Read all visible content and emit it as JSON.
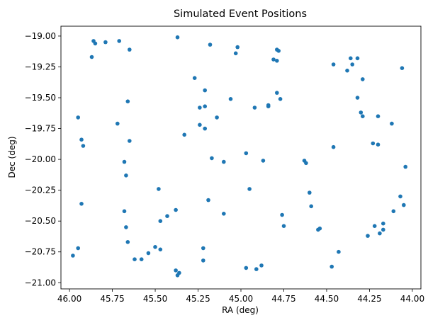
{
  "chart_data": {
    "type": "scatter",
    "title": "Simulated Event Positions",
    "xlabel": "RA (deg)",
    "ylabel": "Dec (deg)",
    "x_inverted": true,
    "xlim": [
      46.05,
      43.95
    ],
    "ylim": [
      -21.05,
      -18.92
    ],
    "xticks": [
      46.0,
      45.75,
      45.5,
      45.25,
      45.0,
      44.75,
      44.5,
      44.25,
      44.0
    ],
    "xtick_labels": [
      "46.00",
      "45.75",
      "45.50",
      "45.25",
      "45.00",
      "44.75",
      "44.50",
      "44.25",
      "44.00"
    ],
    "yticks": [
      -19.0,
      -19.25,
      -19.5,
      -19.75,
      -20.0,
      -20.25,
      -20.5,
      -20.75,
      -21.0
    ],
    "ytick_labels": [
      "−19.00",
      "−19.25",
      "−19.50",
      "−19.75",
      "−20.00",
      "−20.25",
      "−20.50",
      "−20.75",
      "−21.00"
    ],
    "grid": false,
    "marker_color": "#1f77b4",
    "points": [
      {
        "x": 45.86,
        "y": -19.04
      },
      {
        "x": 45.85,
        "y": -19.06
      },
      {
        "x": 45.79,
        "y": -19.05
      },
      {
        "x": 45.71,
        "y": -19.04
      },
      {
        "x": 45.87,
        "y": -19.17
      },
      {
        "x": 45.65,
        "y": -19.11
      },
      {
        "x": 45.37,
        "y": -19.01
      },
      {
        "x": 45.18,
        "y": -19.07
      },
      {
        "x": 45.02,
        "y": -19.09
      },
      {
        "x": 45.03,
        "y": -19.14
      },
      {
        "x": 44.79,
        "y": -19.11
      },
      {
        "x": 44.78,
        "y": -19.12
      },
      {
        "x": 44.81,
        "y": -19.19
      },
      {
        "x": 44.79,
        "y": -19.2
      },
      {
        "x": 44.46,
        "y": -19.23
      },
      {
        "x": 44.36,
        "y": -19.18
      },
      {
        "x": 44.32,
        "y": -19.18
      },
      {
        "x": 44.35,
        "y": -19.23
      },
      {
        "x": 44.38,
        "y": -19.28
      },
      {
        "x": 44.29,
        "y": -19.35
      },
      {
        "x": 44.06,
        "y": -19.26
      },
      {
        "x": 45.27,
        "y": -19.34
      },
      {
        "x": 45.21,
        "y": -19.44
      },
      {
        "x": 45.24,
        "y": -19.58
      },
      {
        "x": 45.21,
        "y": -19.57
      },
      {
        "x": 45.06,
        "y": -19.51
      },
      {
        "x": 45.66,
        "y": -19.53
      },
      {
        "x": 44.79,
        "y": -19.46
      },
      {
        "x": 44.77,
        "y": -19.51
      },
      {
        "x": 44.32,
        "y": -19.5
      },
      {
        "x": 44.3,
        "y": -19.62
      },
      {
        "x": 44.29,
        "y": -19.65
      },
      {
        "x": 44.2,
        "y": -19.65
      },
      {
        "x": 44.12,
        "y": -19.71
      },
      {
        "x": 45.95,
        "y": -19.66
      },
      {
        "x": 45.72,
        "y": -19.71
      },
      {
        "x": 45.24,
        "y": -19.72
      },
      {
        "x": 45.21,
        "y": -19.75
      },
      {
        "x": 45.14,
        "y": -19.66
      },
      {
        "x": 44.92,
        "y": -19.58
      },
      {
        "x": 44.84,
        "y": -19.56
      },
      {
        "x": 44.84,
        "y": -19.57
      },
      {
        "x": 45.33,
        "y": -19.8
      },
      {
        "x": 45.65,
        "y": -19.85
      },
      {
        "x": 45.93,
        "y": -19.84
      },
      {
        "x": 45.92,
        "y": -19.89
      },
      {
        "x": 44.46,
        "y": -19.9
      },
      {
        "x": 44.23,
        "y": -19.87
      },
      {
        "x": 44.2,
        "y": -19.88
      },
      {
        "x": 45.68,
        "y": -20.02
      },
      {
        "x": 45.17,
        "y": -19.99
      },
      {
        "x": 45.1,
        "y": -20.02
      },
      {
        "x": 44.97,
        "y": -19.95
      },
      {
        "x": 44.87,
        "y": -20.01
      },
      {
        "x": 44.63,
        "y": -20.01
      },
      {
        "x": 44.62,
        "y": -20.03
      },
      {
        "x": 44.04,
        "y": -20.06
      },
      {
        "x": 45.67,
        "y": -20.13
      },
      {
        "x": 45.48,
        "y": -20.24
      },
      {
        "x": 45.19,
        "y": -20.33
      },
      {
        "x": 44.95,
        "y": -20.24
      },
      {
        "x": 44.6,
        "y": -20.27
      },
      {
        "x": 44.59,
        "y": -20.38
      },
      {
        "x": 44.07,
        "y": -20.3
      },
      {
        "x": 44.05,
        "y": -20.37
      },
      {
        "x": 45.93,
        "y": -20.36
      },
      {
        "x": 45.68,
        "y": -20.42
      },
      {
        "x": 45.38,
        "y": -20.41
      },
      {
        "x": 45.43,
        "y": -20.46
      },
      {
        "x": 45.47,
        "y": -20.5
      },
      {
        "x": 45.1,
        "y": -20.44
      },
      {
        "x": 44.76,
        "y": -20.45
      },
      {
        "x": 44.75,
        "y": -20.54
      },
      {
        "x": 44.55,
        "y": -20.57
      },
      {
        "x": 44.54,
        "y": -20.56
      },
      {
        "x": 44.11,
        "y": -20.42
      },
      {
        "x": 44.17,
        "y": -20.52
      },
      {
        "x": 44.17,
        "y": -20.57
      },
      {
        "x": 44.22,
        "y": -20.54
      },
      {
        "x": 44.26,
        "y": -20.62
      },
      {
        "x": 44.19,
        "y": -20.6
      },
      {
        "x": 45.67,
        "y": -20.55
      },
      {
        "x": 45.66,
        "y": -20.67
      },
      {
        "x": 45.95,
        "y": -20.72
      },
      {
        "x": 45.98,
        "y": -20.78
      },
      {
        "x": 45.62,
        "y": -20.81
      },
      {
        "x": 45.58,
        "y": -20.81
      },
      {
        "x": 45.54,
        "y": -20.76
      },
      {
        "x": 45.5,
        "y": -20.71
      },
      {
        "x": 45.47,
        "y": -20.73
      },
      {
        "x": 45.22,
        "y": -20.72
      },
      {
        "x": 45.22,
        "y": -20.82
      },
      {
        "x": 44.43,
        "y": -20.75
      },
      {
        "x": 45.38,
        "y": -20.9
      },
      {
        "x": 45.37,
        "y": -20.94
      },
      {
        "x": 45.36,
        "y": -20.92
      },
      {
        "x": 44.97,
        "y": -20.88
      },
      {
        "x": 44.91,
        "y": -20.89
      },
      {
        "x": 44.88,
        "y": -20.86
      },
      {
        "x": 44.47,
        "y": -20.87
      }
    ]
  }
}
